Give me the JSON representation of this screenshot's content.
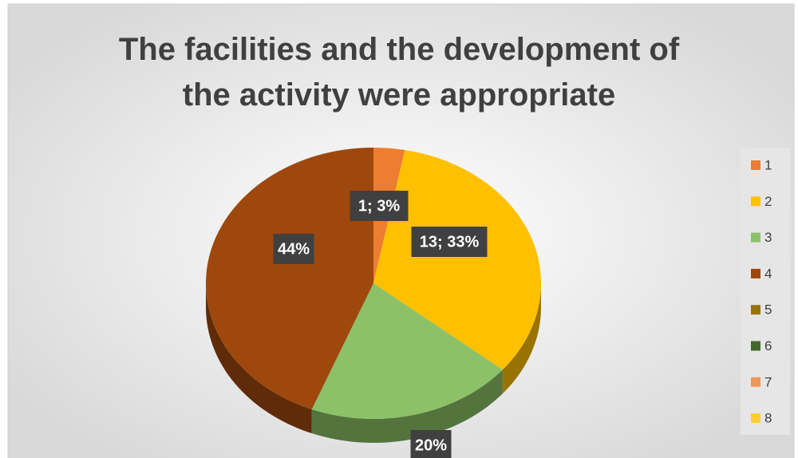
{
  "chart_data": {
    "type": "pie",
    "title": [
      "The facilities and the development of",
      "the activity were appropriate"
    ],
    "categories": [
      "1",
      "2",
      "3",
      "4",
      "5",
      "6",
      "7",
      "8"
    ],
    "values": [
      3,
      33,
      20,
      44,
      0,
      0,
      0,
      0
    ],
    "value_labels": [
      "1; 3%",
      "13; 33%",
      "20%",
      "44%",
      null,
      null,
      null,
      null
    ],
    "colors": [
      "#ed7d31",
      "#ffc000",
      "#8cc168",
      "#9e480e",
      "#997300",
      "#43682b",
      "#f1975a",
      "#ffcd33"
    ],
    "legend": "right"
  }
}
